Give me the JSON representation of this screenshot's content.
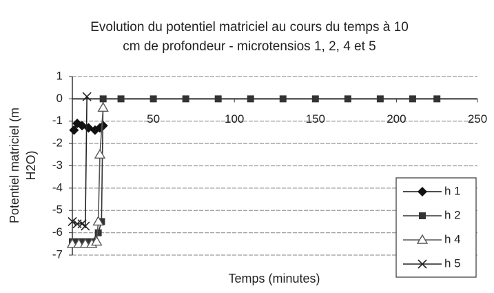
{
  "chart_data": {
    "type": "line",
    "title": [
      "Evolution du potentiel matriciel au cours du temps à 10",
      "cm de profondeur - microtensios 1, 2, 4 et 5"
    ],
    "x_label": "Temps (minutes)",
    "y_label": [
      "Potentiel matriciel (m",
      "H2O)"
    ],
    "xlim": [
      0,
      250
    ],
    "xticks": [
      50,
      100,
      150,
      200,
      250
    ],
    "ylim": [
      -7,
      1
    ],
    "yticks": [
      -7,
      -6,
      -5,
      -4,
      -3,
      -2,
      -1,
      0,
      1
    ],
    "grid": true,
    "legend": "lower right",
    "series": [
      {
        "name": "h 1",
        "color": "#111111",
        "marker": "diamond",
        "x": [
          1,
          3,
          6,
          10,
          14,
          17,
          19
        ],
        "values": [
          -1.4,
          -1.1,
          -1.2,
          -1.3,
          -1.4,
          -1.3,
          -1.2
        ]
      },
      {
        "name": "h 2",
        "color": "#333333",
        "marker": "square",
        "x": [
          0,
          4,
          8,
          12,
          16,
          18,
          19,
          30,
          50,
          70,
          90,
          110,
          130,
          150,
          170,
          190,
          210,
          225
        ],
        "values": [
          -6.4,
          -6.4,
          -6.4,
          -6.4,
          -6.0,
          -5.5,
          0,
          0,
          0,
          0,
          0,
          0,
          0,
          0,
          0,
          0,
          0,
          0
        ]
      },
      {
        "name": "h 4",
        "color": "#555555",
        "marker": "triangle",
        "x": [
          0,
          4,
          8,
          12,
          15,
          16,
          17,
          19
        ],
        "values": [
          -6.5,
          -6.5,
          -6.5,
          -6.5,
          -6.4,
          -5.5,
          -2.5,
          -0.4
        ]
      },
      {
        "name": "h 5",
        "color": "#222222",
        "marker": "x",
        "x": [
          0,
          3,
          6,
          8,
          9
        ],
        "values": [
          -5.5,
          -5.6,
          -5.6,
          -5.7,
          0.1
        ]
      }
    ]
  }
}
